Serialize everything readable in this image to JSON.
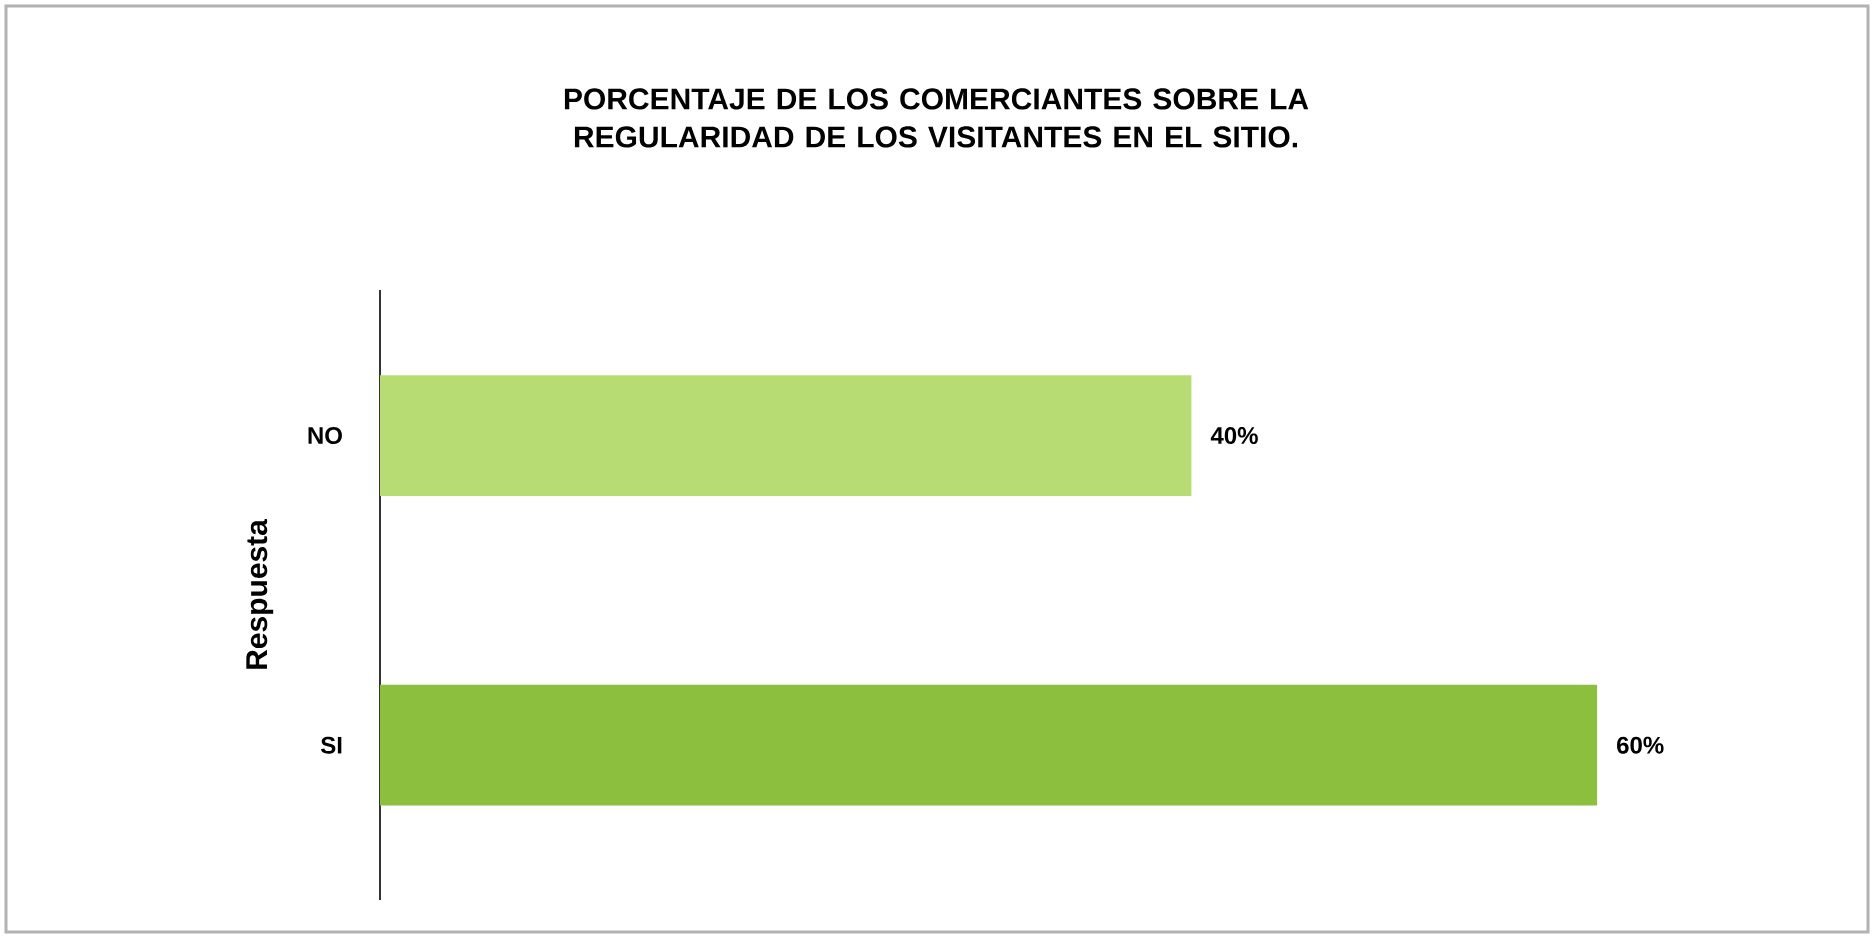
{
  "chart_data": {
    "type": "bar",
    "orientation": "horizontal",
    "title": "PORCENTAJE DE LOS COMERCIANTES SOBRE LA REGULARIDAD DE LOS VISITANTES EN EL SITIO.",
    "ylabel": "Respuesta",
    "categories": [
      "NO",
      "SI"
    ],
    "values": [
      40,
      60
    ],
    "value_labels": [
      "40%",
      "60%"
    ],
    "colors": [
      "#b8dc74",
      "#8dbf3e"
    ],
    "tick_labels": "y"
  }
}
